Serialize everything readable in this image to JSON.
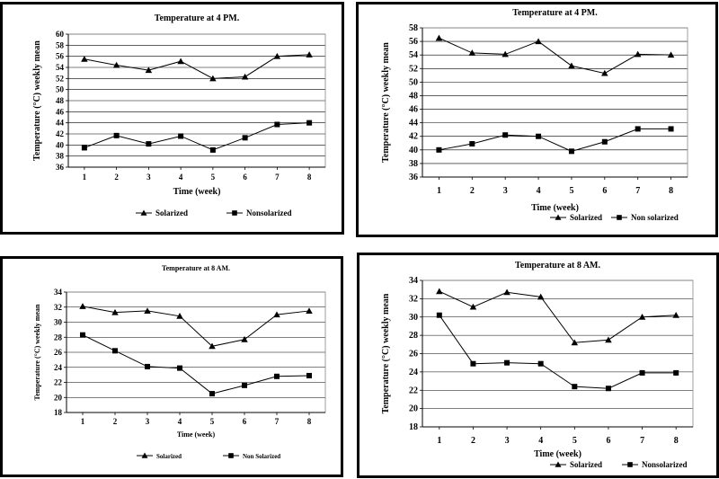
{
  "chart_data": [
    {
      "type": "line",
      "title": "Temperature at 4 PM.",
      "xlabel": "Time (week)",
      "ylabel": "Temperature (°C) weekly mean",
      "x": [
        1,
        2,
        3,
        4,
        5,
        6,
        7,
        8
      ],
      "ylim": [
        36,
        60
      ],
      "yticks": [
        36,
        38,
        40,
        42,
        44,
        46,
        48,
        50,
        52,
        54,
        56,
        58,
        60
      ],
      "grid": true,
      "legend": "bottom",
      "series": [
        {
          "name": "Solarized",
          "marker": "triangle",
          "values": [
            55.5,
            54.4,
            53.5,
            55.1,
            52.0,
            52.3,
            56.0,
            56.3
          ]
        },
        {
          "name": "Nonsolarized",
          "marker": "square",
          "values": [
            39.5,
            41.7,
            40.2,
            41.6,
            39.1,
            41.3,
            43.7,
            44.0
          ]
        }
      ]
    },
    {
      "type": "line",
      "title": "Temperature at 4 PM.",
      "xlabel": "Time (week)",
      "ylabel": "Temperature (°C) weekly mean",
      "x": [
        1,
        2,
        3,
        4,
        5,
        6,
        7,
        8
      ],
      "ylim": [
        36,
        58
      ],
      "yticks": [
        36,
        38,
        40,
        42,
        44,
        46,
        48,
        50,
        52,
        54,
        56,
        58
      ],
      "grid": true,
      "legend": "bottom",
      "series": [
        {
          "name": "Solarized",
          "marker": "triangle",
          "values": [
            56.5,
            54.3,
            54.1,
            56.0,
            52.4,
            51.3,
            54.1,
            54.0
          ]
        },
        {
          "name": "Non solarized",
          "marker": "square",
          "values": [
            40.0,
            40.9,
            42.2,
            42.0,
            39.8,
            41.2,
            43.1,
            43.1
          ]
        }
      ]
    },
    {
      "type": "line",
      "title": "Temperature at 8 AM.",
      "xlabel": "Time (week)",
      "ylabel": "Temperature (°C) weekly mean",
      "x": [
        1,
        2,
        3,
        4,
        5,
        6,
        7,
        8
      ],
      "ylim": [
        18,
        34
      ],
      "yticks": [
        18,
        20,
        22,
        24,
        26,
        28,
        30,
        32,
        34
      ],
      "grid": true,
      "legend": "bottom",
      "series": [
        {
          "name": "Solarized",
          "marker": "triangle",
          "values": [
            32.1,
            31.3,
            31.5,
            30.8,
            26.8,
            27.7,
            31.0,
            31.5
          ]
        },
        {
          "name": "Non Solarized",
          "marker": "square",
          "values": [
            28.3,
            26.2,
            24.1,
            23.9,
            20.5,
            21.6,
            22.8,
            22.9
          ]
        }
      ]
    },
    {
      "type": "line",
      "title": "Temperature at 8 AM.",
      "xlabel": "Time (week)",
      "ylabel": "Temperature (°C) weekly mean",
      "x": [
        1,
        2,
        3,
        4,
        5,
        6,
        7,
        8
      ],
      "ylim": [
        18,
        34
      ],
      "yticks": [
        18,
        20,
        22,
        24,
        26,
        28,
        30,
        32,
        34
      ],
      "grid": true,
      "legend": "bottom",
      "series": [
        {
          "name": "Solarized",
          "marker": "triangle",
          "values": [
            32.8,
            31.1,
            32.7,
            32.2,
            27.2,
            27.5,
            30.0,
            30.2
          ]
        },
        {
          "name": "Nonsolarized",
          "marker": "square",
          "values": [
            30.2,
            24.9,
            25.0,
            24.9,
            22.4,
            22.2,
            23.9,
            23.9
          ]
        }
      ]
    }
  ]
}
